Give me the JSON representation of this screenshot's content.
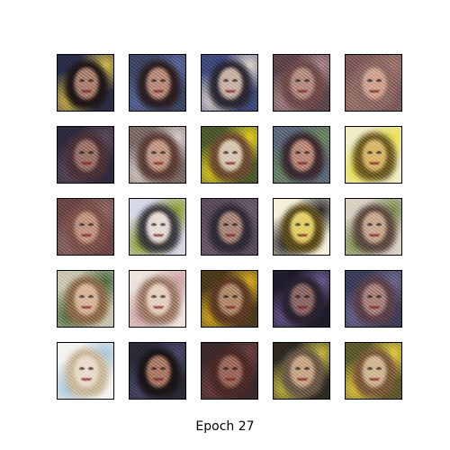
{
  "caption": "Epoch 27",
  "grid": {
    "rows": 5,
    "cols": 5
  },
  "tiles": [
    {
      "bg": "#2a2e45",
      "hair": "#1f1616",
      "face": "#a9826e",
      "accent": "#d8c04a"
    },
    {
      "bg": "#3c4660",
      "hair": "#2b1e20",
      "face": "#b58d7a",
      "accent": "#5a6a9a"
    },
    {
      "bg": "#3e4a78",
      "hair": "#2a2733",
      "face": "#c9b3a2",
      "accent": "#e4dccc"
    },
    {
      "bg": "#5c4648",
      "hair": "#6c4b48",
      "face": "#b48e80",
      "accent": "#a98a8a"
    },
    {
      "bg": "#7a5a58",
      "hair": "#8a6a62",
      "face": "#cfa58e",
      "accent": "#9a7a6a"
    },
    {
      "bg": "#2e2a3c",
      "hair": "#4a3236",
      "face": "#9a7468",
      "accent": "#5a4a5a"
    },
    {
      "bg": "#7a6a64",
      "hair": "#5a3e36",
      "face": "#c09a84",
      "accent": "#d8d2cc"
    },
    {
      "bg": "#4a5a2a",
      "hair": "#6a4a30",
      "face": "#d8c8b0",
      "accent": "#e6d020"
    },
    {
      "bg": "#5a6a78",
      "hair": "#3a2a30",
      "face": "#b88a78",
      "accent": "#6a8a5a"
    },
    {
      "bg": "#f0ecc4",
      "hair": "#6a5a20",
      "face": "#d8b86a",
      "accent": "#e8e050"
    },
    {
      "bg": "#6a4644",
      "hair": "#7a5248",
      "face": "#c09680",
      "accent": "#8a6a62"
    },
    {
      "bg": "#d6d8e6",
      "hair": "#3a3a3a",
      "face": "#e6dcd4",
      "accent": "#8aa030"
    },
    {
      "bg": "#5a4c58",
      "hair": "#2e2a34",
      "face": "#a88878",
      "accent": "#6a5a6a"
    },
    {
      "bg": "#f4f0d8",
      "hair": "#5a4a1a",
      "face": "#e2d06a",
      "accent": "#2a2a2a"
    },
    {
      "bg": "#d8d2c2",
      "hair": "#5a4a3e",
      "face": "#c8aa8e",
      "accent": "#7a8a4a"
    },
    {
      "bg": "#c8c6ae",
      "hair": "#8a6a48",
      "face": "#d8b898",
      "accent": "#4a6a3a"
    },
    {
      "bg": "#ece4dc",
      "hair": "#9a7a64",
      "face": "#e6d0be",
      "accent": "#caa0a0"
    },
    {
      "bg": "#4a3a1a",
      "hair": "#5a3a24",
      "face": "#b08a6a",
      "accent": "#d8b020"
    },
    {
      "bg": "#1e1c2a",
      "hair": "#2a2230",
      "face": "#8a6a64",
      "accent": "#6a5a8a"
    },
    {
      "bg": "#3a3e58",
      "hair": "#5a4048",
      "face": "#a8847a",
      "accent": "#6a6a8a"
    },
    {
      "bg": "#f4f4f0",
      "hair": "#c8b89a",
      "face": "#e8dcc8",
      "accent": "#a8c8d8"
    },
    {
      "bg": "#2a2a36",
      "hair": "#1a1416",
      "face": "#a87a64",
      "accent": "#4a4a6a"
    },
    {
      "bg": "#3a2a2a",
      "hair": "#4a2a26",
      "face": "#9a6a5a",
      "accent": "#6a4040"
    },
    {
      "bg": "#2e2a22",
      "hair": "#6a5a48",
      "face": "#c8a884",
      "accent": "#c8c040"
    },
    {
      "bg": "#5a5a2a",
      "hair": "#7a5a3a",
      "face": "#d0b890",
      "accent": "#e8d040"
    }
  ]
}
